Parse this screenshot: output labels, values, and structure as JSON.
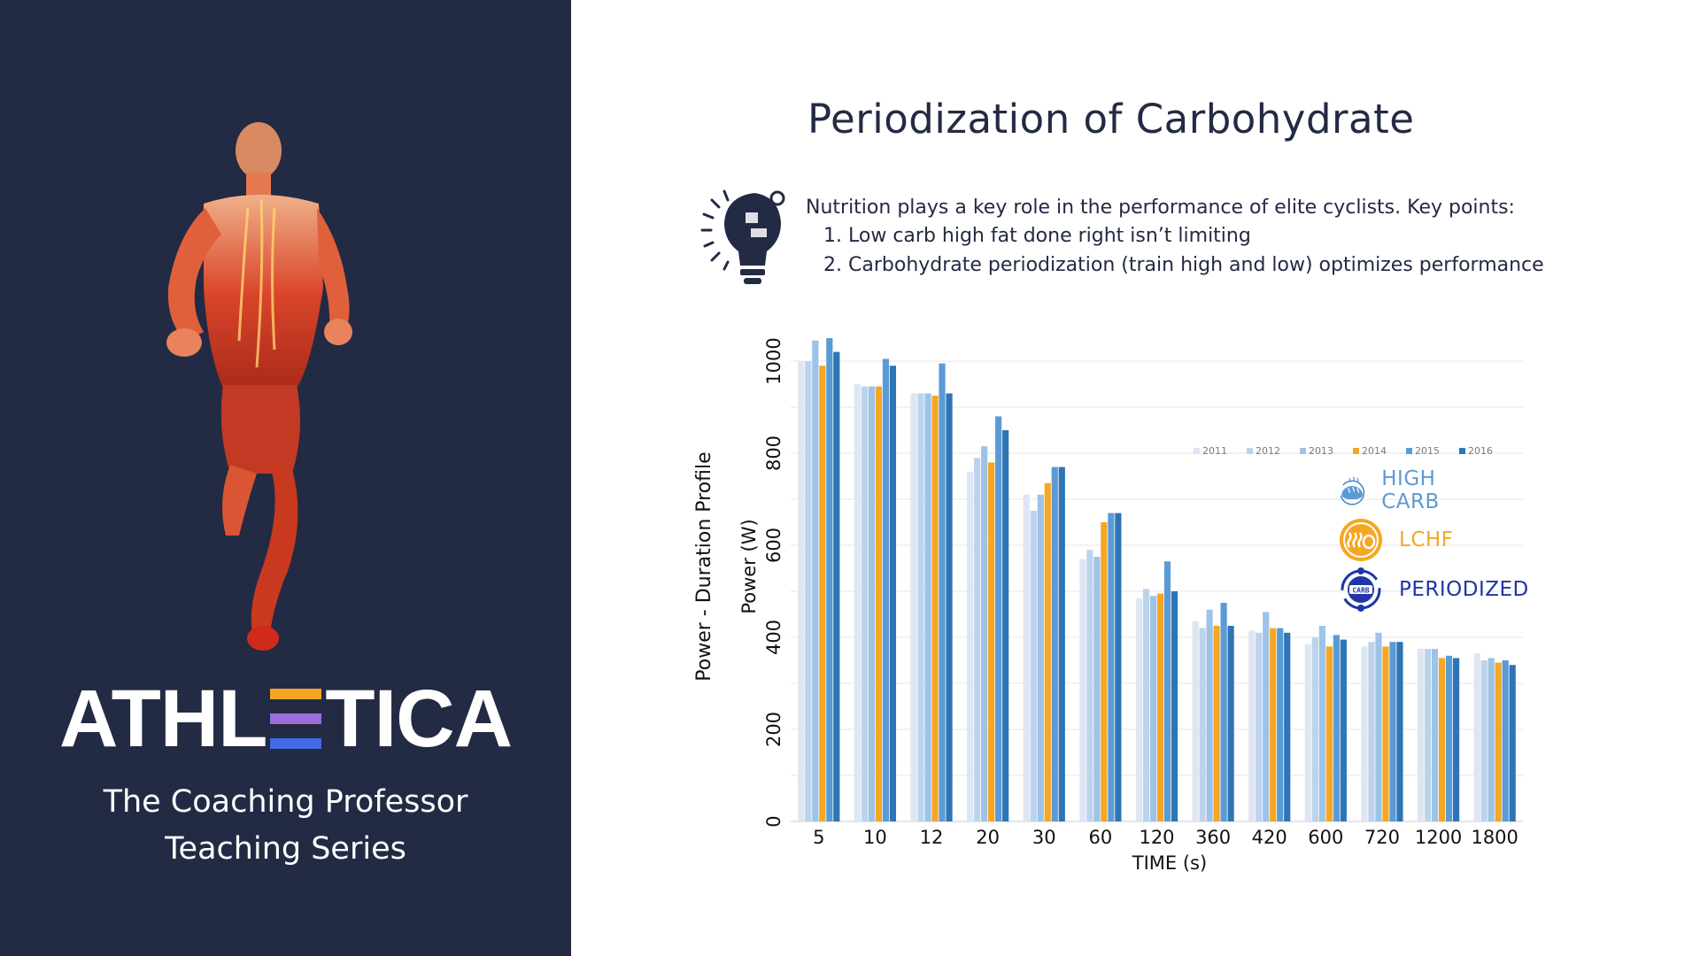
{
  "brand": {
    "name_left": "ATHL",
    "name_right": "TICA",
    "e_colors": [
      "#f5a623",
      "#9b6ddb",
      "#4169e1"
    ],
    "tagline_line1": "The Coaching Professor",
    "tagline_line2": "Teaching Series"
  },
  "slide": {
    "title": "Periodization of Carbohydrate",
    "intro": "Nutrition plays a key role in the performance of elite cyclists. Key points:",
    "points": [
      {
        "num": "1.",
        "text": "Low carb high fat done right isn’t limiting"
      },
      {
        "num": "2.",
        "text": "Carbohydrate periodization (train high and low) optimizes performance"
      }
    ]
  },
  "category_legend": [
    {
      "label": "HIGH CARB",
      "color": "#5b9bd5",
      "icon": "bread-icon"
    },
    {
      "label": "LCHF",
      "color": "#f5a623",
      "icon": "bacon-icon"
    },
    {
      "label": "PERIODIZED",
      "color": "#2035a8",
      "icon": "carb-cycle-icon"
    }
  ],
  "chart_data": {
    "type": "bar",
    "title": "Power - Duration Profile",
    "ylabel": "Power (W)",
    "xlabel": "TIME (s)",
    "ylim": [
      0,
      1050
    ],
    "yticks": [
      0,
      200,
      400,
      600,
      800,
      1000
    ],
    "grid": true,
    "legend_position": "top-right",
    "categories": [
      "5",
      "10",
      "12",
      "20",
      "30",
      "60",
      "120",
      "360",
      "420",
      "600",
      "720",
      "1200",
      "1800"
    ],
    "series": [
      {
        "name": "2011",
        "color": "#dde6f2",
        "values": [
          1000,
          950,
          930,
          760,
          710,
          570,
          485,
          435,
          415,
          385,
          380,
          375,
          365
        ]
      },
      {
        "name": "2012",
        "color": "#bcd3ee",
        "values": [
          1000,
          945,
          930,
          790,
          675,
          590,
          505,
          420,
          410,
          400,
          390,
          375,
          350
        ]
      },
      {
        "name": "2013",
        "color": "#9dc3e6",
        "values": [
          1045,
          945,
          930,
          815,
          710,
          575,
          490,
          460,
          455,
          425,
          410,
          375,
          355
        ]
      },
      {
        "name": "2014",
        "color": "#f5a623",
        "values": [
          990,
          945,
          925,
          780,
          735,
          650,
          495,
          425,
          420,
          380,
          380,
          355,
          345
        ]
      },
      {
        "name": "2015",
        "color": "#5b9bd5",
        "values": [
          1050,
          1005,
          995,
          880,
          770,
          670,
          565,
          475,
          420,
          405,
          390,
          360,
          350
        ]
      },
      {
        "name": "2016",
        "color": "#2e75b6",
        "values": [
          1020,
          990,
          930,
          850,
          770,
          670,
          500,
          425,
          410,
          395,
          390,
          355,
          340
        ]
      }
    ]
  }
}
